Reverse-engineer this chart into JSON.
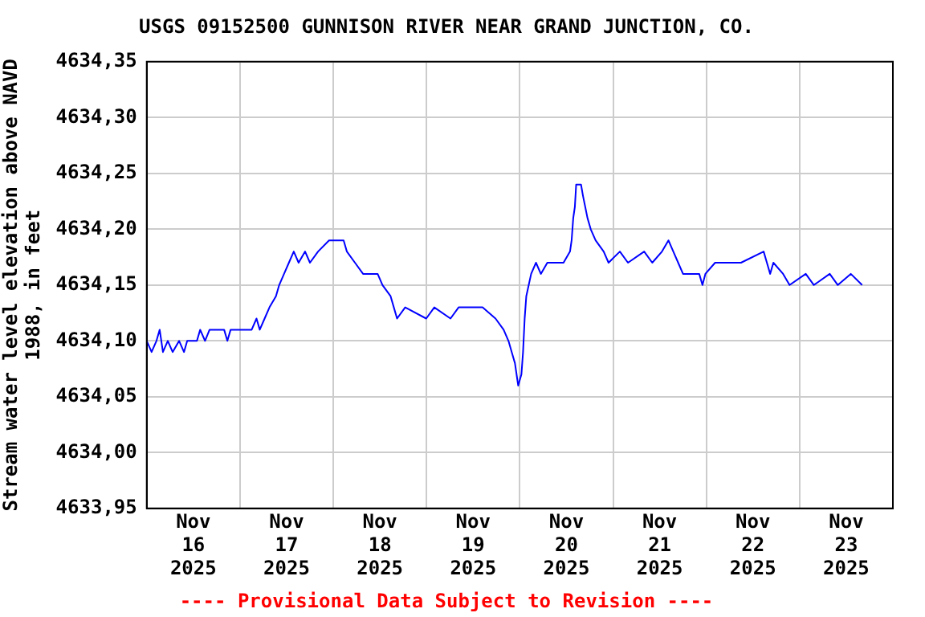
{
  "chart_data": {
    "type": "line",
    "title": "USGS 09152500 GUNNISON RIVER NEAR GRAND JUNCTION, CO.",
    "ylabel": "Stream water level elevation above NAVD 1988, in feet",
    "annotations": [
      "---- Provisional Data Subject to Revision ----"
    ],
    "x": [
      "2025-11-16T00:00",
      "2025-11-16T01:15",
      "2025-11-16T02:30",
      "2025-11-16T03:20",
      "2025-11-16T04:10",
      "2025-11-16T05:25",
      "2025-11-16T06:40",
      "2025-11-16T08:20",
      "2025-11-16T09:35",
      "2025-11-16T10:25",
      "2025-11-16T12:55",
      "2025-11-16T13:45",
      "2025-11-16T15:00",
      "2025-11-16T16:10",
      "2025-11-16T19:55",
      "2025-11-16T20:45",
      "2025-11-16T21:35",
      "2025-11-17T03:00",
      "2025-11-17T04:15",
      "2025-11-17T05:05",
      "2025-11-17T06:20",
      "2025-11-17T07:35",
      "2025-11-17T09:15",
      "2025-11-17T10:05",
      "2025-11-17T11:20",
      "2025-11-17T12:35",
      "2025-11-17T13:50",
      "2025-11-17T15:05",
      "2025-11-17T16:45",
      "2025-11-17T18:00",
      "2025-11-17T20:05",
      "2025-11-17T22:55",
      "2025-11-18T02:40",
      "2025-11-18T03:30",
      "2025-11-18T05:35",
      "2025-11-18T07:40",
      "2025-11-18T11:25",
      "2025-11-18T12:40",
      "2025-11-18T14:45",
      "2025-11-18T15:35",
      "2025-11-18T16:25",
      "2025-11-18T18:30",
      "2025-11-18T23:55",
      "2025-11-19T02:00",
      "2025-11-19T06:10",
      "2025-11-19T08:15",
      "2025-11-19T14:25",
      "2025-11-19T17:45",
      "2025-11-19T19:50",
      "2025-11-19T21:05",
      "2025-11-19T21:55",
      "2025-11-19T22:45",
      "2025-11-19T23:10",
      "2025-11-19T23:35",
      "2025-11-20T00:25",
      "2025-11-20T00:50",
      "2025-11-20T01:15",
      "2025-11-20T01:40",
      "2025-11-20T02:55",
      "2025-11-20T04:10",
      "2025-11-20T05:25",
      "2025-11-20T07:05",
      "2025-11-20T11:15",
      "2025-11-20T12:55",
      "2025-11-20T13:20",
      "2025-11-20T13:45",
      "2025-11-20T14:10",
      "2025-11-20T14:30",
      "2025-11-20T15:45",
      "2025-11-20T16:15",
      "2025-11-20T17:25",
      "2025-11-20T18:15",
      "2025-11-20T19:30",
      "2025-11-20T21:35",
      "2025-11-20T22:50",
      "2025-11-21T01:45",
      "2025-11-21T03:50",
      "2025-11-21T08:00",
      "2025-11-21T10:05",
      "2025-11-21T12:35",
      "2025-11-21T14:15",
      "2025-11-21T15:30",
      "2025-11-21T16:45",
      "2025-11-21T18:00",
      "2025-11-21T22:10",
      "2025-11-21T23:00",
      "2025-11-21T23:45",
      "2025-11-22T02:15",
      "2025-11-22T08:55",
      "2025-11-22T14:45",
      "2025-11-22T15:35",
      "2025-11-22T16:25",
      "2025-11-22T17:15",
      "2025-11-22T19:45",
      "2025-11-22T21:25",
      "2025-11-23T01:35",
      "2025-11-23T03:40",
      "2025-11-23T07:45",
      "2025-11-23T09:50",
      "2025-11-23T13:10",
      "2025-11-23T16:05"
    ],
    "series": [
      {
        "color": "#0000ff",
        "values": [
          4634.1,
          4634.09,
          4634.1,
          4634.11,
          4634.09,
          4634.1,
          4634.09,
          4634.1,
          4634.09,
          4634.1,
          4634.1,
          4634.11,
          4634.1,
          4634.11,
          4634.11,
          4634.1,
          4634.11,
          4634.11,
          4634.12,
          4634.11,
          4634.12,
          4634.13,
          4634.14,
          4634.15,
          4634.16,
          4634.17,
          4634.18,
          4634.17,
          4634.18,
          4634.17,
          4634.18,
          4634.19,
          4634.19,
          4634.18,
          4634.17,
          4634.16,
          4634.16,
          4634.15,
          4634.14,
          4634.13,
          4634.12,
          4634.13,
          4634.12,
          4634.13,
          4634.12,
          4634.13,
          4634.13,
          4634.12,
          4634.11,
          4634.1,
          4634.09,
          4634.08,
          4634.07,
          4634.06,
          4634.07,
          4634.09,
          4634.12,
          4634.14,
          4634.16,
          4634.17,
          4634.16,
          4634.17,
          4634.17,
          4634.18,
          4634.19,
          4634.21,
          4634.22,
          4634.24,
          4634.24,
          4634.23,
          4634.21,
          4634.2,
          4634.19,
          4634.18,
          4634.17,
          4634.18,
          4634.17,
          4634.18,
          4634.17,
          4634.18,
          4634.19,
          4634.18,
          4634.17,
          4634.16,
          4634.16,
          4634.15,
          4634.16,
          4634.17,
          4634.17,
          4634.18,
          4634.17,
          4634.16,
          4634.17,
          4634.16,
          4634.15,
          4634.16,
          4634.15,
          4634.16,
          4634.15,
          4634.16,
          4634.15
        ]
      }
    ],
    "xlim": [
      "2025-11-16T00:00",
      "2025-11-24T00:00"
    ],
    "xticks": [
      {
        "value": "2025-11-16T00:00",
        "label": null
      },
      {
        "value": "2025-11-16T12:00",
        "label": "Nov 16 2025"
      },
      {
        "value": "2025-11-17T00:00",
        "label": null
      },
      {
        "value": "2025-11-17T12:00",
        "label": "Nov 17 2025"
      },
      {
        "value": "2025-11-18T00:00",
        "label": null
      },
      {
        "value": "2025-11-18T12:00",
        "label": "Nov 18 2025"
      },
      {
        "value": "2025-11-19T00:00",
        "label": null
      },
      {
        "value": "2025-11-19T12:00",
        "label": "Nov 19 2025"
      },
      {
        "value": "2025-11-20T00:00",
        "label": null
      },
      {
        "value": "2025-11-20T12:00",
        "label": "Nov 20 2025"
      },
      {
        "value": "2025-11-21T00:00",
        "label": null
      },
      {
        "value": "2025-11-21T12:00",
        "label": "Nov 21 2025"
      },
      {
        "value": "2025-11-22T00:00",
        "label": null
      },
      {
        "value": "2025-11-22T12:00",
        "label": "Nov 22 2025"
      },
      {
        "value": "2025-11-23T00:00",
        "label": null
      },
      {
        "value": "2025-11-23T12:00",
        "label": "Nov 23 2025"
      },
      {
        "value": "2025-11-24T00:00",
        "label": null
      }
    ],
    "ylim": [
      4633.95,
      4634.35
    ],
    "yticks": [
      {
        "value": 4633.95,
        "label": "4633,95"
      },
      {
        "value": 4634.0,
        "label": "4634,00"
      },
      {
        "value": 4634.05,
        "label": "4634,05"
      },
      {
        "value": 4634.1,
        "label": "4634,10"
      },
      {
        "value": 4634.15,
        "label": "4634,15"
      },
      {
        "value": 4634.2,
        "label": "4634,20"
      },
      {
        "value": 4634.25,
        "label": "4634,25"
      },
      {
        "value": 4634.3,
        "label": "4634,30"
      },
      {
        "value": 4634.35,
        "label": "4634,35"
      }
    ],
    "grid": true,
    "legend": false,
    "marker": "none",
    "line_style": "solid"
  }
}
